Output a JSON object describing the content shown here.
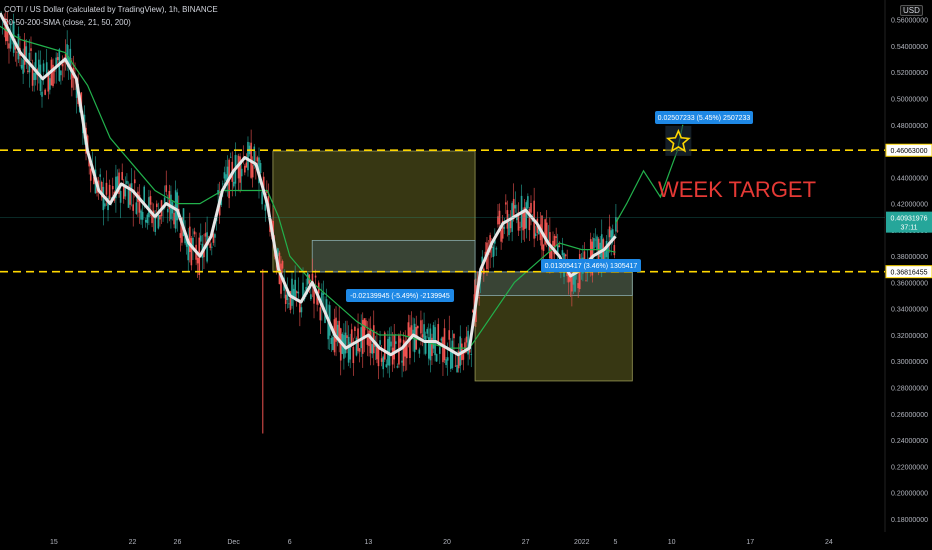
{
  "header": {
    "symbol_line": "COTI / US Dollar (calculated by TradingView), 1h, BINANCE",
    "indicator_line": "20-50-200-SMA (close, 21, 50, 200)",
    "currency_label": "USD"
  },
  "annotations": {
    "week_target": "WEEK TARGET",
    "measure_down": "-0.02139945 (-5.49%) -2139945",
    "measure_up": "0.02507233 (5.45%) 2507233",
    "measure_small": "0.01305417 (3.46%) 1305417"
  },
  "colors": {
    "background": "#000000",
    "target_line": "#ffd700",
    "sma_white": "#e6e6e6",
    "sma_green": "#22b14c",
    "candle_up": "#26a69a",
    "candle_down": "#ef5350",
    "week_target_text": "#e53935",
    "label_blue": "#1e88e5",
    "price_tag": "#26a69a",
    "box_fill": "#4a4a1a"
  },
  "chart_data": {
    "type": "candlestick",
    "ylim": [
      0.17,
      0.575
    ],
    "y_ticks": [
      "0.56000000",
      "0.54000000",
      "0.52000000",
      "0.50000000",
      "0.48000000",
      "0.46000000",
      "0.44000000",
      "0.42000000",
      "0.40000000",
      "0.38000000",
      "0.36000000",
      "0.34000000",
      "0.32000000",
      "0.30000000",
      "0.28000000",
      "0.26000000",
      "0.24000000",
      "0.22000000",
      "0.20000000",
      "0.18000000"
    ],
    "y_tick_values": [
      0.56,
      0.54,
      0.52,
      0.5,
      0.48,
      0.46,
      0.44,
      0.42,
      0.4,
      0.38,
      0.36,
      0.34,
      0.32,
      0.3,
      0.28,
      0.26,
      0.24,
      0.22,
      0.2,
      0.18
    ],
    "x_ticks": [
      "15",
      "22",
      "26",
      "Dec",
      "6",
      "13",
      "20",
      "27",
      "2022",
      "5",
      "10",
      "17",
      "24"
    ],
    "x_tick_days": [
      15,
      22,
      26,
      31,
      36,
      43,
      50,
      57,
      62,
      65,
      70,
      77,
      84
    ],
    "x_range_days": [
      10.2,
      89
    ],
    "current_price": "0.40931976",
    "current_price_value": 0.40931976,
    "countdown": "37:11",
    "horizontal_levels": [
      {
        "label": "0.46063000",
        "value": 0.46063
      },
      {
        "label": "0.36816455",
        "value": 0.36816455
      }
    ],
    "sma_fast": [
      [
        10.2,
        0.565
      ],
      [
        12,
        0.535
      ],
      [
        14,
        0.515
      ],
      [
        16,
        0.53
      ],
      [
        17,
        0.515
      ],
      [
        18,
        0.46
      ],
      [
        19,
        0.43
      ],
      [
        20,
        0.42
      ],
      [
        21,
        0.435
      ],
      [
        22,
        0.43
      ],
      [
        23,
        0.42
      ],
      [
        24,
        0.41
      ],
      [
        25,
        0.42
      ],
      [
        26,
        0.415
      ],
      [
        27,
        0.39
      ],
      [
        28,
        0.38
      ],
      [
        29,
        0.395
      ],
      [
        30,
        0.43
      ],
      [
        31,
        0.445
      ],
      [
        32,
        0.455
      ],
      [
        33,
        0.45
      ],
      [
        34,
        0.42
      ],
      [
        35,
        0.37
      ],
      [
        36,
        0.35
      ],
      [
        37,
        0.345
      ],
      [
        38,
        0.36
      ],
      [
        39,
        0.34
      ],
      [
        40,
        0.32
      ],
      [
        41,
        0.31
      ],
      [
        42,
        0.315
      ],
      [
        43,
        0.32
      ],
      [
        44,
        0.31
      ],
      [
        45,
        0.305
      ],
      [
        46,
        0.31
      ],
      [
        47,
        0.32
      ],
      [
        48,
        0.315
      ],
      [
        49,
        0.315
      ],
      [
        50,
        0.31
      ],
      [
        51,
        0.305
      ],
      [
        52,
        0.31
      ],
      [
        53,
        0.37
      ],
      [
        54,
        0.39
      ],
      [
        55,
        0.405
      ],
      [
        56,
        0.41
      ],
      [
        57,
        0.415
      ],
      [
        58,
        0.405
      ],
      [
        59,
        0.39
      ],
      [
        60,
        0.38
      ],
      [
        61,
        0.365
      ],
      [
        62,
        0.37
      ],
      [
        63,
        0.38
      ],
      [
        64,
        0.385
      ],
      [
        65,
        0.395
      ]
    ],
    "sma_slow": [
      [
        10.2,
        0.555
      ],
      [
        12,
        0.545
      ],
      [
        14,
        0.54
      ],
      [
        16,
        0.535
      ],
      [
        18,
        0.51
      ],
      [
        20,
        0.47
      ],
      [
        22,
        0.45
      ],
      [
        24,
        0.43
      ],
      [
        26,
        0.42
      ],
      [
        28,
        0.42
      ],
      [
        30,
        0.43
      ],
      [
        32,
        0.43
      ],
      [
        34,
        0.43
      ],
      [
        35,
        0.41
      ],
      [
        36,
        0.38
      ],
      [
        38,
        0.36
      ],
      [
        40,
        0.345
      ],
      [
        42,
        0.33
      ],
      [
        44,
        0.32
      ],
      [
        46,
        0.32
      ],
      [
        48,
        0.315
      ],
      [
        50,
        0.31
      ],
      [
        52,
        0.31
      ],
      [
        54,
        0.335
      ],
      [
        56,
        0.36
      ],
      [
        58,
        0.375
      ],
      [
        60,
        0.39
      ],
      [
        62,
        0.385
      ],
      [
        64,
        0.385
      ],
      [
        65,
        0.383
      ]
    ],
    "projection_path": [
      [
        65,
        0.405
      ],
      [
        66,
        0.42
      ],
      [
        67.5,
        0.445
      ],
      [
        69,
        0.425
      ],
      [
        70.5,
        0.46
      ],
      [
        71,
        0.48
      ]
    ],
    "drawn_boxes": [
      {
        "x0": 34.5,
        "x1": 52.5,
        "y0": 0.46,
        "y1": 0.368
      },
      {
        "x0": 52.5,
        "x1": 66.5,
        "y0": 0.368,
        "y1": 0.285
      },
      {
        "x0": 38,
        "x1": 52.5,
        "y0": 0.392,
        "y1": 0.368
      },
      {
        "x0": 52.5,
        "x1": 66.5,
        "y0": 0.368,
        "y1": 0.35
      }
    ]
  }
}
